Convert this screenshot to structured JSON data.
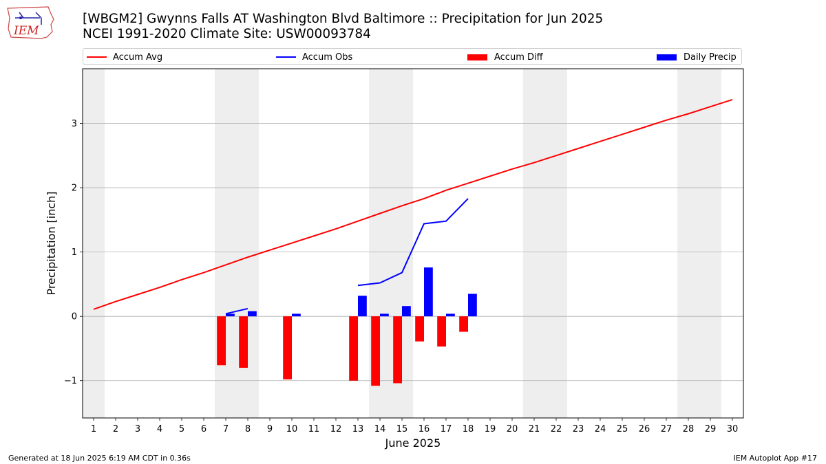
{
  "header": {
    "title_line1": "[WBGM2] Gwynns Falls  AT Washington Blvd Baltimore :: Precipitation for Jun 2025",
    "title_line2": "NCEI 1991-2020 Climate Site: USW00093784",
    "logo_text": "IEM"
  },
  "footer": {
    "generated": "Generated at 18 Jun 2025 6:19 AM CDT in 0.36s",
    "app": "IEM Autoplot App #17"
  },
  "colors": {
    "accum_avg": "#ff0000",
    "accum_obs": "#0000ff",
    "accum_diff": "#ff0000",
    "daily_precip": "#0000ff",
    "weekend_shade": "#eeeeee",
    "grid": "#b0b0b0"
  },
  "chart_data": {
    "type": "bar",
    "xlabel": "June 2025",
    "ylabel": "Precipitation [inch]",
    "xlim": [
      0.5,
      30.5
    ],
    "ylim": [
      -1.58,
      3.85
    ],
    "y_ticks": [
      -1,
      0,
      1,
      2,
      3
    ],
    "y_tick_labels": [
      "−1",
      "0",
      "1",
      "2",
      "3"
    ],
    "x_ticks": [
      1,
      2,
      3,
      4,
      5,
      6,
      7,
      8,
      9,
      10,
      11,
      12,
      13,
      14,
      15,
      16,
      17,
      18,
      19,
      20,
      21,
      22,
      23,
      24,
      25,
      26,
      27,
      28,
      29,
      30
    ],
    "grid": "y",
    "legend": {
      "placement": "top",
      "entries": [
        {
          "label": "Accum Avg",
          "kind": "line",
          "series": "accum_avg"
        },
        {
          "label": "Accum Obs",
          "kind": "line",
          "series": "accum_obs"
        },
        {
          "label": "Accum Diff",
          "kind": "bar",
          "series": "accum_diff"
        },
        {
          "label": "Daily Precip",
          "kind": "bar",
          "series": "daily_precip"
        }
      ]
    },
    "weekend_shading": [
      [
        0.5,
        1.5
      ],
      [
        6.5,
        8.5
      ],
      [
        13.5,
        15.5
      ],
      [
        20.5,
        22.5
      ],
      [
        27.5,
        29.5
      ]
    ],
    "series": [
      {
        "name": "Accum Avg",
        "kind": "line",
        "x": [
          1,
          2,
          3,
          4,
          5,
          6,
          7,
          8,
          9,
          10,
          11,
          12,
          13,
          14,
          15,
          16,
          17,
          18,
          19,
          20,
          21,
          22,
          23,
          24,
          25,
          26,
          27,
          28,
          29,
          30
        ],
        "values": [
          0.11,
          0.23,
          0.34,
          0.45,
          0.57,
          0.68,
          0.8,
          0.92,
          1.03,
          1.14,
          1.25,
          1.36,
          1.48,
          1.6,
          1.72,
          1.83,
          1.96,
          2.07,
          2.18,
          2.29,
          2.39,
          2.5,
          2.61,
          2.72,
          2.83,
          2.94,
          3.05,
          3.15,
          3.26,
          3.37
        ]
      },
      {
        "name": "Accum Obs",
        "kind": "line",
        "segments": [
          {
            "x": [
              7,
              8
            ],
            "values": [
              0.04,
              0.12
            ]
          },
          {
            "x": [
              13,
              14,
              15,
              16,
              17,
              18
            ],
            "values": [
              0.48,
              0.52,
              0.68,
              1.44,
              1.48,
              1.83
            ]
          }
        ]
      },
      {
        "name": "Accum Diff",
        "kind": "bar",
        "x": [
          7,
          8,
          10,
          13,
          14,
          15,
          16,
          17,
          18
        ],
        "values": [
          -0.76,
          -0.8,
          -0.98,
          -1.0,
          -1.08,
          -1.04,
          -0.39,
          -0.47,
          -0.24
        ]
      },
      {
        "name": "Daily Precip",
        "kind": "bar",
        "x": [
          7,
          8,
          10,
          13,
          14,
          15,
          16,
          17,
          18
        ],
        "values": [
          0.04,
          0.08,
          0.04,
          0.32,
          0.04,
          0.16,
          0.76,
          0.04,
          0.35
        ]
      }
    ]
  }
}
